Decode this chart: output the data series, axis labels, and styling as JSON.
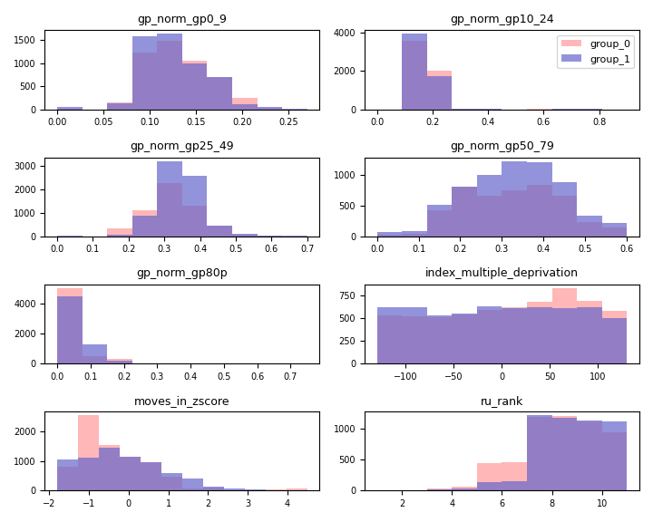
{
  "titles": [
    "gp_norm_gp0_9",
    "gp_norm_gp10_24",
    "gp_norm_gp25_49",
    "gp_norm_gp50_79",
    "gp_norm_gp80p",
    "index_multiple_deprivation",
    "moves_in_zscore",
    "ru_rank"
  ],
  "color0": "#FF9999",
  "color1": "#6666CC",
  "alpha": 0.7,
  "legend_labels": [
    "group_0",
    "group_1"
  ],
  "figsize": [
    7.2,
    5.76
  ],
  "dpi": 100,
  "seed": 42,
  "bins_list": [
    10,
    10,
    10,
    10,
    10,
    10,
    12,
    10
  ]
}
